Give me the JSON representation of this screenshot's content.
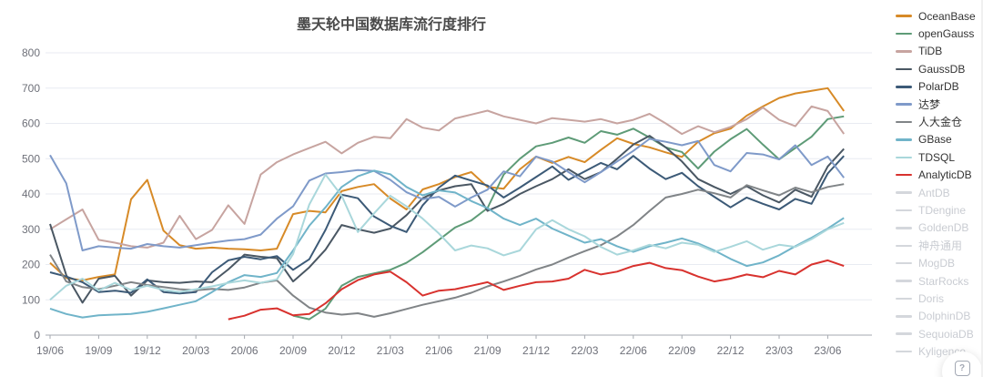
{
  "title": "墨天轮中国数据库流行度排行",
  "help_button": {
    "icon": "?"
  },
  "chart_data": {
    "type": "line",
    "title": "墨天轮中国数据库流行度排行",
    "grid": true,
    "legend_position": "right",
    "ylim": [
      0,
      800
    ],
    "y_ticks": [
      0,
      100,
      200,
      300,
      400,
      500,
      600,
      700,
      800
    ],
    "x_tick_labels": [
      "19/06",
      "19/09",
      "19/12",
      "20/03",
      "20/06",
      "20/09",
      "20/12",
      "21/03",
      "21/06",
      "21/09",
      "21/12",
      "22/03",
      "22/06",
      "22/09",
      "22/12",
      "23/03",
      "23/06"
    ],
    "points_per_tick": 3,
    "series": [
      {
        "name": "OceanBase",
        "color": "#d78a27",
        "enabled": true,
        "values": [
          205,
          162,
          155,
          165,
          172,
          385,
          440,
          296,
          255,
          245,
          248,
          245,
          243,
          240,
          245,
          343,
          352,
          348,
          408,
          420,
          428,
          387,
          356,
          413,
          428,
          448,
          462,
          420,
          415,
          470,
          506,
          488,
          505,
          490,
          525,
          558,
          542,
          532,
          518,
          505,
          548,
          572,
          585,
          622,
          648,
          672,
          685,
          692,
          700,
          635
        ]
      },
      {
        "name": "openGauss",
        "color": "#5e9b77",
        "enabled": true,
        "values": [
          null,
          null,
          null,
          null,
          null,
          null,
          null,
          null,
          null,
          null,
          null,
          null,
          null,
          null,
          null,
          55,
          45,
          75,
          140,
          165,
          175,
          185,
          205,
          235,
          270,
          305,
          325,
          360,
          455,
          500,
          535,
          545,
          560,
          545,
          578,
          568,
          585,
          560,
          532,
          519,
          472,
          520,
          555,
          584,
          540,
          498,
          530,
          562,
          612,
          620
        ]
      },
      {
        "name": "TiDB",
        "color": "#c7a4a0",
        "enabled": true,
        "values": [
          300,
          328,
          356,
          270,
          262,
          252,
          248,
          262,
          338,
          272,
          298,
          368,
          315,
          455,
          490,
          512,
          530,
          548,
          515,
          545,
          562,
          558,
          612,
          588,
          580,
          614,
          625,
          636,
          620,
          610,
          600,
          615,
          610,
          605,
          612,
          600,
          610,
          627,
          600,
          570,
          592,
          575,
          590,
          612,
          645,
          610,
          592,
          648,
          635,
          570
        ]
      },
      {
        "name": "GaussDB",
        "color": "#4a5763",
        "enabled": true,
        "values": [
          315,
          170,
          92,
          160,
          168,
          112,
          155,
          150,
          148,
          152,
          150,
          186,
          228,
          222,
          218,
          152,
          192,
          242,
          312,
          300,
          290,
          302,
          340,
          388,
          410,
          422,
          428,
          352,
          372,
          400,
          422,
          442,
          470,
          442,
          462,
          500,
          540,
          565,
          532,
          492,
          442,
          420,
          400,
          422,
          396,
          376,
          412,
          392,
          478,
          528
        ]
      },
      {
        "name": "PolarDB",
        "color": "#3c5a77",
        "enabled": true,
        "values": [
          178,
          166,
          150,
          122,
          126,
          120,
          158,
          122,
          118,
          122,
          178,
          212,
          222,
          215,
          224,
          185,
          215,
          298,
          398,
          388,
          336,
          310,
          292,
          368,
          418,
          452,
          438,
          424,
          390,
          418,
          448,
          478,
          440,
          464,
          488,
          470,
          508,
          472,
          442,
          460,
          422,
          392,
          362,
          390,
          372,
          356,
          386,
          372,
          458,
          508
        ]
      },
      {
        "name": "达梦",
        "color": "#7f9ac9",
        "enabled": true,
        "values": [
          510,
          430,
          240,
          252,
          248,
          245,
          258,
          252,
          248,
          255,
          262,
          268,
          272,
          285,
          330,
          365,
          438,
          458,
          462,
          468,
          465,
          440,
          405,
          385,
          392,
          364,
          390,
          412,
          464,
          450,
          506,
          492,
          462,
          433,
          462,
          492,
          522,
          556,
          548,
          538,
          550,
          482,
          464,
          516,
          512,
          498,
          538,
          482,
          506,
          446
        ]
      },
      {
        "name": "人大金仓",
        "color": "#808487",
        "enabled": true,
        "values": [
          228,
          152,
          136,
          130,
          140,
          150,
          142,
          136,
          130,
          127,
          131,
          128,
          135,
          148,
          155,
          112,
          78,
          64,
          58,
          62,
          52,
          62,
          74,
          86,
          96,
          106,
          120,
          138,
          152,
          168,
          186,
          200,
          220,
          238,
          255,
          280,
          312,
          352,
          390,
          400,
          412,
          402,
          390,
          425,
          410,
          396,
          418,
          405,
          420,
          428
        ]
      },
      {
        "name": "GBase",
        "color": "#70b4c9",
        "enabled": true,
        "values": [
          75,
          60,
          50,
          56,
          58,
          60,
          66,
          76,
          86,
          96,
          122,
          150,
          170,
          165,
          176,
          240,
          310,
          362,
          420,
          450,
          466,
          456,
          420,
          396,
          410,
          404,
          380,
          360,
          330,
          312,
          330,
          302,
          282,
          262,
          272,
          252,
          236,
          252,
          262,
          274,
          260,
          240,
          216,
          196,
          206,
          226,
          252,
          276,
          302,
          332
        ]
      },
      {
        "name": "TDSQL",
        "color": "#a9d7db",
        "enabled": true,
        "values": [
          100,
          140,
          160,
          126,
          148,
          128,
          140,
          128,
          122,
          130,
          138,
          148,
          155,
          148,
          158,
          230,
          370,
          455,
          395,
          292,
          345,
          395,
          365,
          330,
          288,
          240,
          254,
          246,
          226,
          240,
          300,
          326,
          300,
          280,
          250,
          228,
          240,
          256,
          246,
          262,
          256,
          236,
          250,
          266,
          242,
          256,
          250,
          272,
          300,
          318
        ]
      },
      {
        "name": "AnalyticDB",
        "color": "#d8322e",
        "enabled": true,
        "values": [
          null,
          null,
          null,
          null,
          null,
          null,
          null,
          null,
          null,
          null,
          null,
          45,
          55,
          72,
          76,
          56,
          60,
          90,
          130,
          156,
          172,
          180,
          150,
          112,
          126,
          130,
          140,
          150,
          128,
          140,
          150,
          152,
          160,
          185,
          172,
          180,
          196,
          205,
          190,
          184,
          166,
          152,
          160,
          172,
          164,
          182,
          172,
          200,
          212,
          196
        ]
      },
      {
        "name": "AntDB",
        "color": "#d4d7dc",
        "enabled": false,
        "values": null
      },
      {
        "name": "TDengine",
        "color": "#d4d7dc",
        "enabled": false,
        "values": null
      },
      {
        "name": "GoldenDB",
        "color": "#d4d7dc",
        "enabled": false,
        "values": null
      },
      {
        "name": "神舟通用",
        "color": "#d4d7dc",
        "enabled": false,
        "values": null
      },
      {
        "name": "MogDB",
        "color": "#d4d7dc",
        "enabled": false,
        "values": null
      },
      {
        "name": "StarRocks",
        "color": "#d4d7dc",
        "enabled": false,
        "values": null
      },
      {
        "name": "Doris",
        "color": "#d4d7dc",
        "enabled": false,
        "values": null
      },
      {
        "name": "DolphinDB",
        "color": "#d4d7dc",
        "enabled": false,
        "values": null
      },
      {
        "name": "SequoiaDB",
        "color": "#d4d7dc",
        "enabled": false,
        "values": null
      },
      {
        "name": "Kyligence",
        "color": "#d4d7dc",
        "enabled": false,
        "values": null
      }
    ],
    "style": {
      "grid_color": "#e8ebf2",
      "axis_color": "#a6aab0",
      "tick_text_color": "#6e7079",
      "title_color": "#4a4a4a",
      "legend_text_color": "#333333",
      "legend_disabled_color": "#c9ccd2"
    }
  }
}
